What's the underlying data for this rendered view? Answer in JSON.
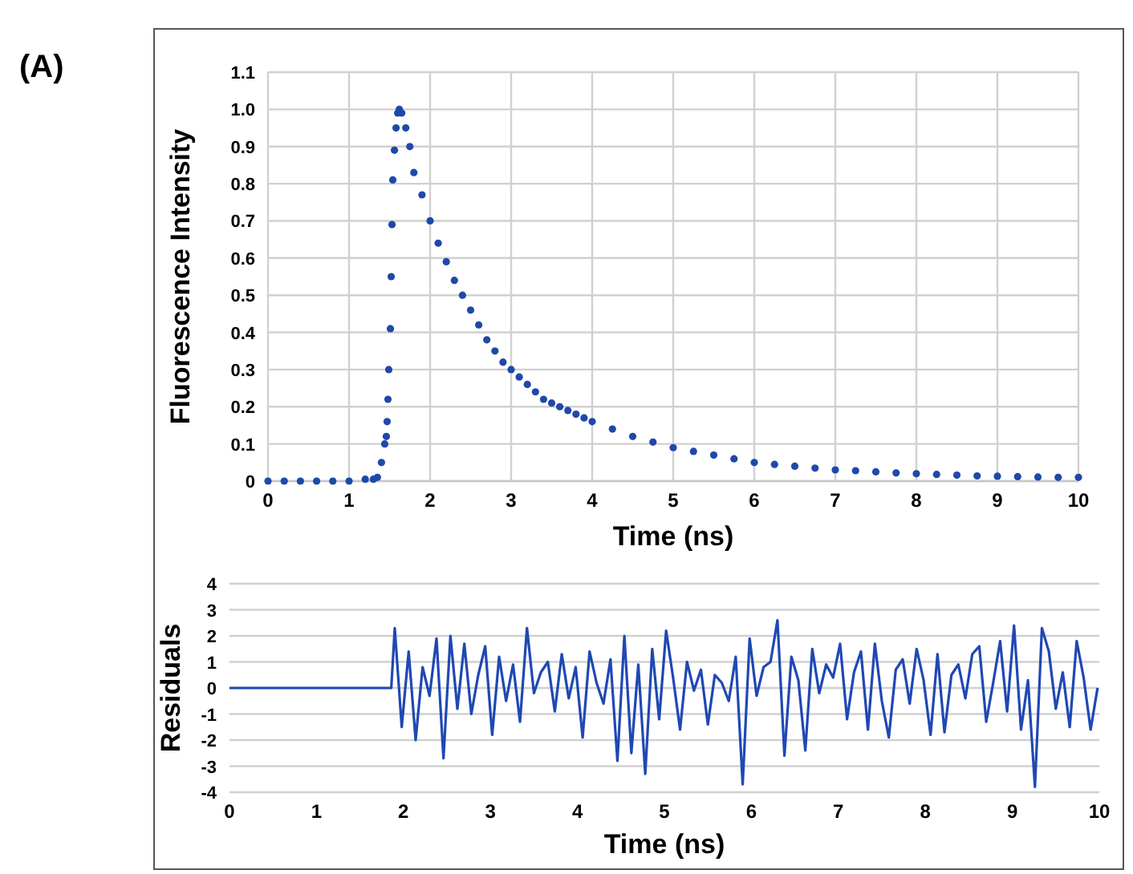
{
  "chart_data": [
    {
      "type": "scatter",
      "xlabel": "Time (ns)",
      "ylabel": "Fluorescence Intensity",
      "annotations": [
        "(A)"
      ],
      "grid": true,
      "marker": "circle",
      "xlim": [
        0,
        10
      ],
      "ylim": [
        0,
        1.1
      ],
      "xticks": [
        0,
        1,
        2,
        3,
        4,
        5,
        6,
        7,
        8,
        9,
        10
      ],
      "yticks": [
        0,
        {
          "value": 0.1,
          "label": "0.1"
        },
        {
          "value": 0.2,
          "label": "0.2"
        },
        {
          "value": 0.3,
          "label": "0.3"
        },
        {
          "value": 0.4,
          "label": "0.4"
        },
        {
          "value": 0.5,
          "label": "0.5"
        },
        {
          "value": 0.6,
          "label": "0.6"
        },
        {
          "value": 0.7,
          "label": "0.7"
        },
        {
          "value": 0.8,
          "label": "0.8"
        },
        {
          "value": 0.9,
          "label": "0.9"
        },
        {
          "value": 1,
          "label": "1.0"
        },
        {
          "value": 1.1,
          "label": "1.1"
        }
      ],
      "series": [
        {
          "color": "#1f48a8",
          "x": [
            0,
            0.2,
            0.4,
            0.6,
            0.8,
            1.0,
            1.2,
            1.3,
            1.35,
            1.4,
            1.44,
            1.46,
            1.47,
            1.48,
            1.49,
            1.51,
            1.52,
            1.53,
            1.54,
            1.56,
            1.58,
            1.6,
            1.62,
            1.65,
            1.7,
            1.75,
            1.8,
            1.9,
            2.0,
            2.1,
            2.2,
            2.3,
            2.4,
            2.5,
            2.6,
            2.7,
            2.8,
            2.9,
            3.0,
            3.1,
            3.2,
            3.3,
            3.4,
            3.5,
            3.6,
            3.7,
            3.8,
            3.9,
            4.0,
            4.25,
            4.5,
            4.75,
            5.0,
            5.25,
            5.5,
            5.75,
            6.0,
            6.25,
            6.5,
            6.75,
            7.0,
            7.25,
            7.5,
            7.75,
            8.0,
            8.25,
            8.5,
            8.75,
            9.0,
            9.25,
            9.5,
            9.75,
            10.0
          ],
          "values": [
            0,
            0,
            0,
            0,
            0,
            0,
            0.005,
            0.005,
            0.01,
            0.05,
            0.1,
            0.12,
            0.16,
            0.22,
            0.3,
            0.41,
            0.55,
            0.69,
            0.81,
            0.89,
            0.95,
            0.99,
            1.0,
            0.99,
            0.95,
            0.9,
            0.83,
            0.77,
            0.7,
            0.64,
            0.59,
            0.54,
            0.5,
            0.46,
            0.42,
            0.38,
            0.35,
            0.32,
            0.3,
            0.28,
            0.26,
            0.24,
            0.22,
            0.21,
            0.2,
            0.19,
            0.18,
            0.17,
            0.16,
            0.14,
            0.12,
            0.105,
            0.09,
            0.08,
            0.07,
            0.06,
            0.05,
            0.045,
            0.04,
            0.035,
            0.03,
            0.028,
            0.025,
            0.022,
            0.02,
            0.018,
            0.016,
            0.014,
            0.013,
            0.012,
            0.011,
            0.01,
            0.01
          ]
        }
      ]
    },
    {
      "type": "line",
      "xlabel": "Time (ns)",
      "ylabel": "Residuals",
      "grid": "y",
      "line_style": "solid",
      "xlim": [
        0,
        10
      ],
      "ylim": [
        -4,
        4
      ],
      "xticks": [
        0,
        1,
        2,
        3,
        4,
        5,
        6,
        7,
        8,
        9,
        10
      ],
      "yticks": [
        -4,
        -3,
        -2,
        -1,
        0,
        1,
        2,
        3,
        4
      ],
      "series": [
        {
          "color": "#1f48b4",
          "x": [
            0,
            1.86,
            1.9,
            1.98,
            2.06,
            2.14,
            2.22,
            2.3,
            2.38,
            2.46,
            2.54,
            2.62,
            2.7,
            2.78,
            2.86,
            2.94,
            3.02,
            3.1,
            3.18,
            3.26,
            3.34,
            3.42,
            3.5,
            3.58,
            3.66,
            3.74,
            3.82,
            3.9,
            3.98,
            4.06,
            4.14,
            4.22,
            4.3,
            4.38,
            4.46,
            4.54,
            4.62,
            4.7,
            4.78,
            4.86,
            4.94,
            5.02,
            5.1,
            5.18,
            5.26,
            5.34,
            5.42,
            5.5,
            5.58,
            5.66,
            5.74,
            5.82,
            5.9,
            5.98,
            6.06,
            6.14,
            6.22,
            6.3,
            6.38,
            6.46,
            6.54,
            6.62,
            6.7,
            6.78,
            6.86,
            6.94,
            7.02,
            7.1,
            7.18,
            7.26,
            7.34,
            7.42,
            7.5,
            7.58,
            7.66,
            7.74,
            7.82,
            7.9,
            7.98,
            8.06,
            8.14,
            8.22,
            8.3,
            8.38,
            8.46,
            8.54,
            8.62,
            8.7,
            8.78,
            8.86,
            8.94,
            9.02,
            9.1,
            9.18,
            9.26,
            9.34,
            9.42,
            9.5,
            9.58,
            9.66,
            9.74,
            9.82,
            9.9,
            9.98
          ],
          "values": [
            0,
            0,
            2.3,
            -1.5,
            1.4,
            -2.0,
            0.8,
            -0.3,
            1.9,
            -2.7,
            2.0,
            -0.8,
            1.7,
            -1.0,
            0.5,
            1.6,
            -1.8,
            1.2,
            -0.5,
            0.9,
            -1.3,
            2.3,
            -0.2,
            0.6,
            1.0,
            -0.9,
            1.3,
            -0.4,
            0.8,
            -1.9,
            1.4,
            0.2,
            -0.6,
            1.1,
            -2.8,
            2.0,
            -2.5,
            0.9,
            -3.3,
            1.5,
            -1.2,
            2.2,
            0.4,
            -1.6,
            1.0,
            -0.1,
            0.7,
            -1.4,
            0.5,
            0.2,
            -0.5,
            1.2,
            -3.7,
            1.9,
            -0.3,
            0.8,
            1.0,
            2.6,
            -2.6,
            1.2,
            0.3,
            -2.4,
            1.5,
            -0.2,
            0.9,
            0.4,
            1.7,
            -1.2,
            0.6,
            1.4,
            -1.6,
            1.7,
            -0.5,
            -1.9,
            0.7,
            1.1,
            -0.6,
            1.5,
            0.3,
            -1.8,
            1.3,
            -1.7,
            0.5,
            0.9,
            -0.4,
            1.3,
            1.6,
            -1.3,
            0.2,
            1.8,
            -0.9,
            2.4,
            -1.6,
            0.3,
            -3.8,
            2.3,
            1.4,
            -0.8,
            0.6,
            -1.5,
            1.8,
            0.4,
            -1.6,
            0.0
          ]
        }
      ]
    }
  ]
}
